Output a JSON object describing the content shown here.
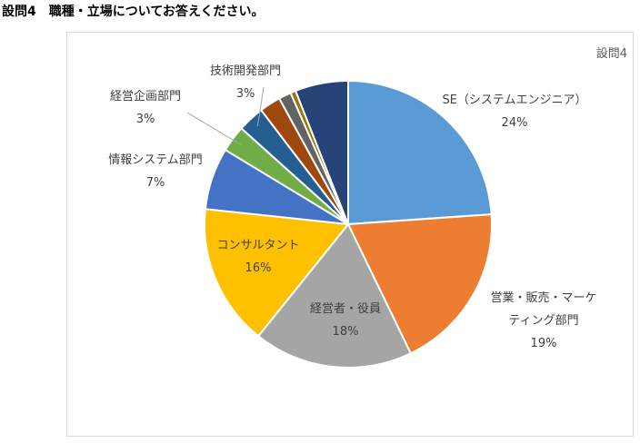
{
  "heading": {
    "number": "設問4",
    "text": "職種・立場についてお答えください。"
  },
  "chart_data": {
    "type": "pie",
    "title": "設問4",
    "start_angle_deg": 0,
    "direction": "clockwise",
    "slices": [
      {
        "label": "SE（システムエンジニア）",
        "value": 24,
        "pct": "24%",
        "color": "#5b9bd5"
      },
      {
        "label": "営業・販売・マーケティング部門",
        "label_lines": [
          "営業・販売・マーケ",
          "ティング部門"
        ],
        "value": 19,
        "pct": "19%",
        "color": "#ed7d31"
      },
      {
        "label": "経営者・役員",
        "value": 18,
        "pct": "18%",
        "color": "#a5a5a5"
      },
      {
        "label": "コンサルタント",
        "value": 16,
        "pct": "16%",
        "color": "#ffc000"
      },
      {
        "label": "情報システム部門",
        "value": 7,
        "pct": "7%",
        "color": "#4472c4"
      },
      {
        "label": "経営企画部門",
        "value": 3,
        "pct": "3%",
        "color": "#70ad47"
      },
      {
        "label": "技術開発部門",
        "value": 3,
        "pct": "3%",
        "color": "#255e91"
      },
      {
        "label": "",
        "value": 2.4,
        "pct": "",
        "color": "#9e480e"
      },
      {
        "label": "",
        "value": 1.4,
        "pct": "",
        "color": "#636363"
      },
      {
        "label": "",
        "value": 0.6,
        "pct": "",
        "color": "#997300"
      },
      {
        "label": "",
        "value": 6.0,
        "pct": "",
        "color": "#264478"
      }
    ]
  }
}
